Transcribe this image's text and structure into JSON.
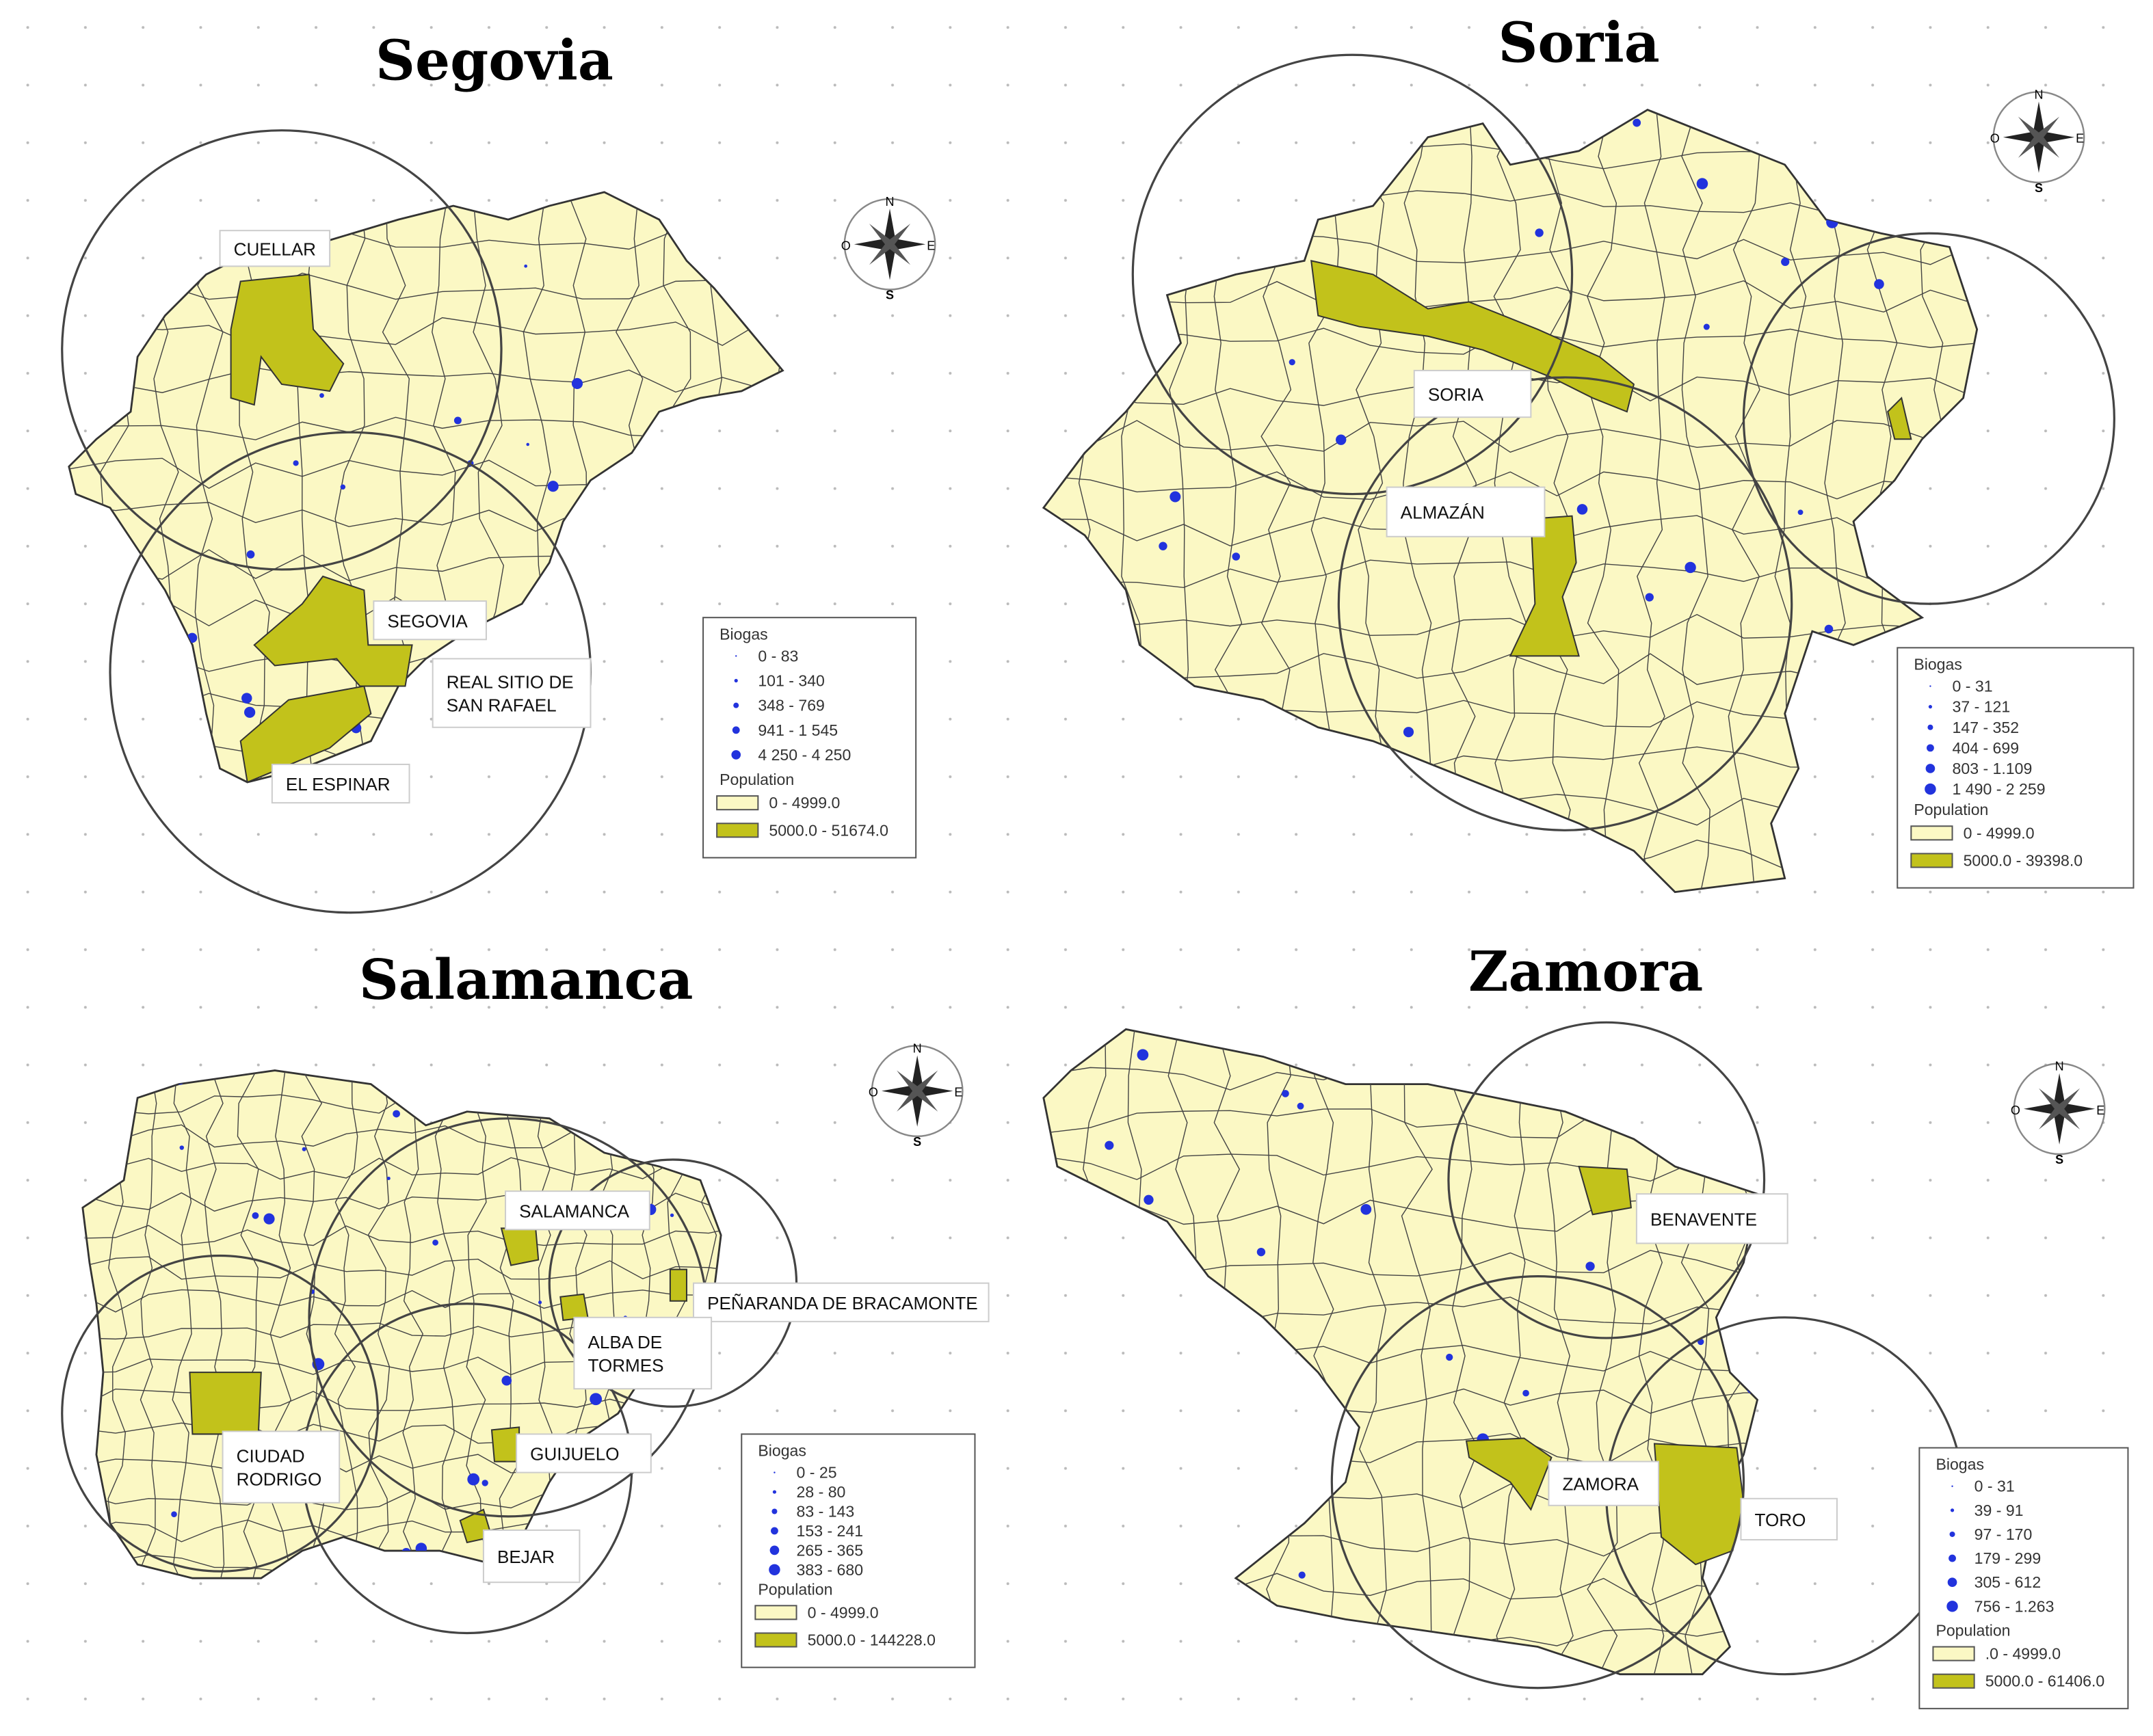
{
  "compass": {
    "n": "N",
    "s": "S",
    "e": "E",
    "w": "O"
  },
  "maps": [
    {
      "title": "Segovia",
      "labels": [
        [
          "CUELLAR"
        ],
        [
          "SEGOVIA"
        ],
        [
          "REAL SITIO DE",
          "SAN RAFAEL"
        ],
        [
          "EL ESPINAR"
        ]
      ],
      "legend": {
        "biogas_title": "Biogas",
        "biogas_classes": [
          "0 - 83",
          "101 - 340",
          "348 - 769",
          "941 - 1 545",
          "4 250 - 4 250"
        ],
        "population_title": "Population",
        "population_classes": [
          "0 - 4999.0",
          "5000.0 - 51674.0"
        ]
      }
    },
    {
      "title": "Soria",
      "labels": [
        [
          "SORIA"
        ],
        [
          "ALMAZÁN"
        ]
      ],
      "legend": {
        "biogas_title": "Biogas",
        "biogas_classes": [
          "0 - 31",
          "37 - 121",
          "147 - 352",
          "404 - 699",
          "803 - 1.109",
          "1 490 - 2 259"
        ],
        "population_title": "Population",
        "population_classes": [
          "0 - 4999.0",
          "5000.0 - 39398.0"
        ]
      }
    },
    {
      "title": "Salamanca",
      "labels": [
        [
          "SALAMANCA"
        ],
        [
          "PEÑARANDA DE BRACAMONTE"
        ],
        [
          "ALBA DE",
          "TORMES"
        ],
        [
          "CIUDAD",
          "RODRIGO"
        ],
        [
          "GUIJUELO"
        ],
        [
          "BEJAR"
        ]
      ],
      "legend": {
        "biogas_title": "Biogas",
        "biogas_classes": [
          "0 - 25",
          "28 - 80",
          "83 - 143",
          "153 - 241",
          "265 - 365",
          "383 - 680"
        ],
        "population_title": "Population",
        "population_classes": [
          "0 - 4999.0",
          "5000.0 - 144228.0"
        ]
      }
    },
    {
      "title": "Zamora",
      "labels": [
        [
          "BENAVENTE"
        ],
        [
          "ZAMORA"
        ],
        [
          "TORO"
        ]
      ],
      "legend": {
        "biogas_title": "Biogas",
        "biogas_classes": [
          "0 - 31",
          "39 - 91",
          "97 - 170",
          "179 - 299",
          "305 - 612",
          "756 - 1.263"
        ],
        "population_title": "Population",
        "population_classes": [
          ".0 - 4999.0",
          "5000.0 - 61406.0"
        ]
      }
    }
  ]
}
